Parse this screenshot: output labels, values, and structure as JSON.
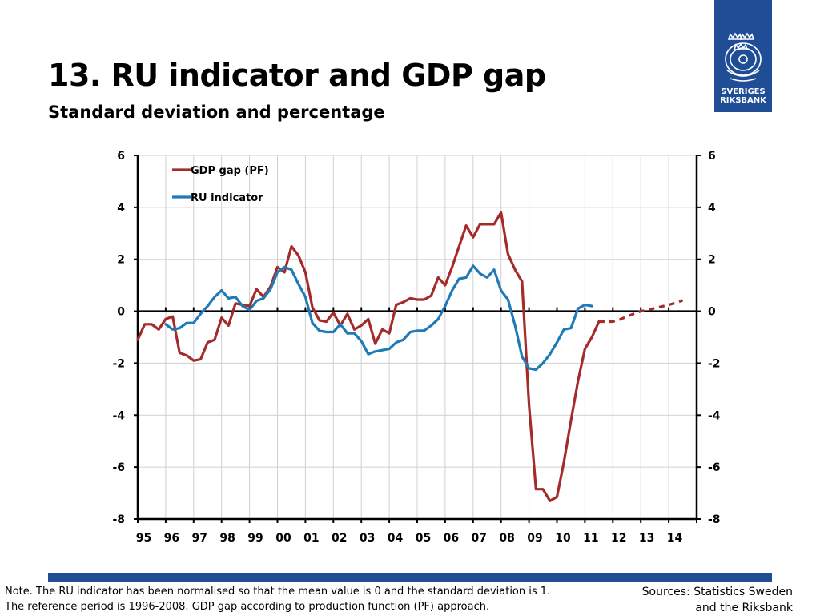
{
  "header": {
    "title": "13. RU indicator and GDP gap",
    "subtitle": "Standard deviation and percentage"
  },
  "logo": {
    "line1": "SVERIGES",
    "line2": "RIKSBANK",
    "icon": "riksbank-crest-icon"
  },
  "footer": {
    "note_line1": "Note. The RU indicator has been normalised so that the mean value is 0 and the standard deviation is 1.",
    "note_line2": "The reference period is 1996-2008. GDP gap according to production function (PF) approach.",
    "sources_line1": "Sources: Statistics Sweden",
    "sources_line2": "and the Riksbank"
  },
  "colors": {
    "gdp": "#a52a2a",
    "ru": "#1f7ab8",
    "band": "#1f4e96",
    "grid": "#d0d0d0"
  },
  "chart_data": {
    "type": "line",
    "title": "",
    "xlabel": "",
    "ylabel": "",
    "ylim": [
      -8,
      6
    ],
    "yticks": [
      -8,
      -6,
      -4,
      -2,
      0,
      2,
      4,
      6
    ],
    "ytick_labels": [
      "-8",
      "-6",
      "-4",
      "-2",
      "0",
      "2",
      "4",
      "6"
    ],
    "xlim": [
      1995,
      2015
    ],
    "xtick_labels": [
      "95",
      "96",
      "97",
      "98",
      "99",
      "00",
      "01",
      "02",
      "03",
      "04",
      "05",
      "06",
      "07",
      "08",
      "09",
      "10",
      "11",
      "12",
      "13",
      "14"
    ],
    "grid": true,
    "legend_position": "top-left",
    "series": [
      {
        "name": "GDP gap (PF)",
        "color": "#a52a2a",
        "style": "solid",
        "x": [
          1995.0,
          1995.25,
          1995.5,
          1995.75,
          1996.0,
          1996.25,
          1996.5,
          1996.75,
          1997.0,
          1997.25,
          1997.5,
          1997.75,
          1998.0,
          1998.25,
          1998.5,
          1998.75,
          1999.0,
          1999.25,
          1999.5,
          1999.75,
          2000.0,
          2000.25,
          2000.5,
          2000.75,
          2001.0,
          2001.25,
          2001.5,
          2001.75,
          2002.0,
          2002.25,
          2002.5,
          2002.75,
          2003.0,
          2003.25,
          2003.5,
          2003.75,
          2004.0,
          2004.25,
          2004.5,
          2004.75,
          2005.0,
          2005.25,
          2005.5,
          2005.75,
          2006.0,
          2006.25,
          2006.5,
          2006.75,
          2007.0,
          2007.25,
          2007.5,
          2007.75,
          2008.0,
          2008.25,
          2008.5,
          2008.75,
          2009.0,
          2009.25,
          2009.5,
          2009.75,
          2010.0,
          2010.25,
          2010.5,
          2010.75,
          2011.0,
          2011.25,
          2011.5
        ],
        "values": [
          -1.1,
          -0.5,
          -0.5,
          -0.7,
          -0.3,
          -0.2,
          -1.6,
          -1.7,
          -1.9,
          -1.85,
          -1.2,
          -1.1,
          -0.25,
          -0.55,
          0.3,
          0.25,
          0.2,
          0.85,
          0.55,
          0.95,
          1.7,
          1.5,
          2.5,
          2.15,
          1.5,
          0.15,
          -0.35,
          -0.4,
          -0.05,
          -0.55,
          -0.1,
          -0.7,
          -0.55,
          -0.3,
          -1.25,
          -0.7,
          -0.85,
          0.25,
          0.35,
          0.5,
          0.45,
          0.45,
          0.6,
          1.3,
          1.0,
          1.7,
          2.5,
          3.3,
          2.85,
          3.35,
          3.35,
          3.35,
          3.8,
          2.2,
          1.6,
          1.15,
          -3.6,
          -6.85,
          -6.85,
          -7.3,
          -7.15,
          -5.8,
          -4.2,
          -2.7,
          -1.45,
          -1.0,
          -0.4
        ]
      },
      {
        "name": "",
        "color": "#a52a2a",
        "style": "dashed",
        "x": [
          2011.5,
          2011.75,
          2012.0,
          2012.25,
          2012.5,
          2012.75,
          2013.0,
          2013.25,
          2013.5,
          2013.75,
          2014.0,
          2014.25,
          2014.5
        ],
        "values": [
          -0.4,
          -0.4,
          -0.4,
          -0.32,
          -0.2,
          -0.1,
          0.0,
          0.05,
          0.12,
          0.18,
          0.25,
          0.32,
          0.42
        ]
      },
      {
        "name": "RU indicator",
        "color": "#1f7ab8",
        "style": "solid",
        "x": [
          1996.0,
          1996.25,
          1996.5,
          1996.75,
          1997.0,
          1997.25,
          1997.5,
          1997.75,
          1998.0,
          1998.25,
          1998.5,
          1998.75,
          1999.0,
          1999.25,
          1999.5,
          1999.75,
          2000.0,
          2000.25,
          2000.5,
          2000.75,
          2001.0,
          2001.25,
          2001.5,
          2001.75,
          2002.0,
          2002.25,
          2002.5,
          2002.75,
          2003.0,
          2003.25,
          2003.5,
          2003.75,
          2004.0,
          2004.25,
          2004.5,
          2004.75,
          2005.0,
          2005.25,
          2005.5,
          2005.75,
          2006.0,
          2006.25,
          2006.5,
          2006.75,
          2007.0,
          2007.25,
          2007.5,
          2007.75,
          2008.0,
          2008.25,
          2008.5,
          2008.75,
          2009.0,
          2009.25,
          2009.5,
          2009.75,
          2010.0,
          2010.25,
          2010.5,
          2010.75,
          2011.0,
          2011.25,
          2011.5
        ],
        "values": [
          -0.5,
          -0.7,
          -0.65,
          -0.45,
          -0.45,
          -0.1,
          0.2,
          0.55,
          0.8,
          0.5,
          0.55,
          0.2,
          0.05,
          0.4,
          0.5,
          0.85,
          1.5,
          1.7,
          1.6,
          1.05,
          0.55,
          -0.45,
          -0.75,
          -0.8,
          -0.8,
          -0.5,
          -0.85,
          -0.85,
          -1.15,
          -1.65,
          -1.55,
          -1.5,
          -1.45,
          -1.2,
          -1.1,
          -0.8,
          -0.75,
          -0.75,
          -0.55,
          -0.3,
          0.2,
          0.8,
          1.25,
          1.3,
          1.75,
          1.45,
          1.3,
          1.6,
          0.8,
          0.45,
          -0.55,
          -1.75,
          -2.2,
          -2.25,
          -2.0,
          -1.65,
          -1.2,
          -0.7,
          -0.65,
          0.1,
          0.25,
          0.2,
          null
        ]
      }
    ],
    "legend": [
      {
        "label": "GDP gap (PF)",
        "color": "#a52a2a"
      },
      {
        "label": "RU indicator",
        "color": "#1f7ab8"
      }
    ]
  }
}
